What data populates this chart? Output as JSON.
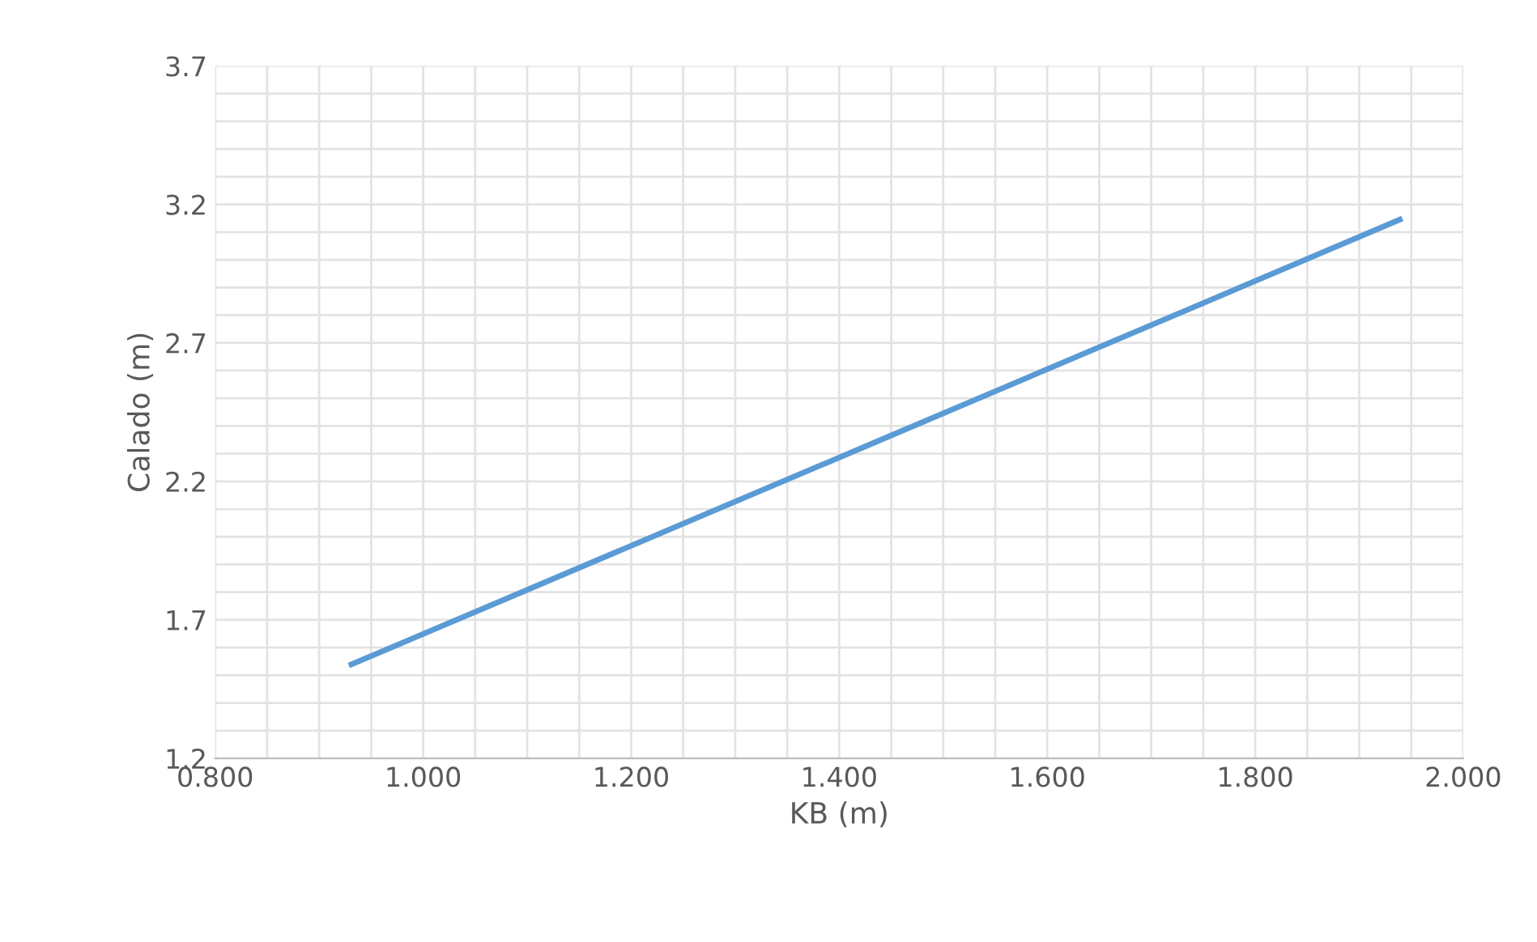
{
  "chart_data": {
    "type": "line",
    "xlabel": "KB (m)",
    "ylabel": "Calado (m)",
    "x": [
      0.931,
      1.435,
      1.939
    ],
    "series": [
      {
        "color": "#5b9bd5",
        "values": [
          1.539,
          2.342,
          3.145
        ]
      }
    ],
    "xlim": [
      0.8,
      2.0
    ],
    "xticks": [
      {
        "value": 0.8,
        "label": "0.800"
      },
      {
        "value": 1.0,
        "label": "1.000"
      },
      {
        "value": 1.2,
        "label": "1.200"
      },
      {
        "value": 1.4,
        "label": "1.400"
      },
      {
        "value": 1.6,
        "label": "1.600"
      },
      {
        "value": 1.8,
        "label": "1.800"
      },
      {
        "value": 2.0,
        "label": "2.000"
      }
    ],
    "ylim": [
      1.2,
      3.7
    ],
    "yticks": [
      1.2,
      1.7,
      2.2,
      2.7,
      3.2,
      3.7
    ],
    "grid": true,
    "marker": "none",
    "line_style": "solid"
  }
}
